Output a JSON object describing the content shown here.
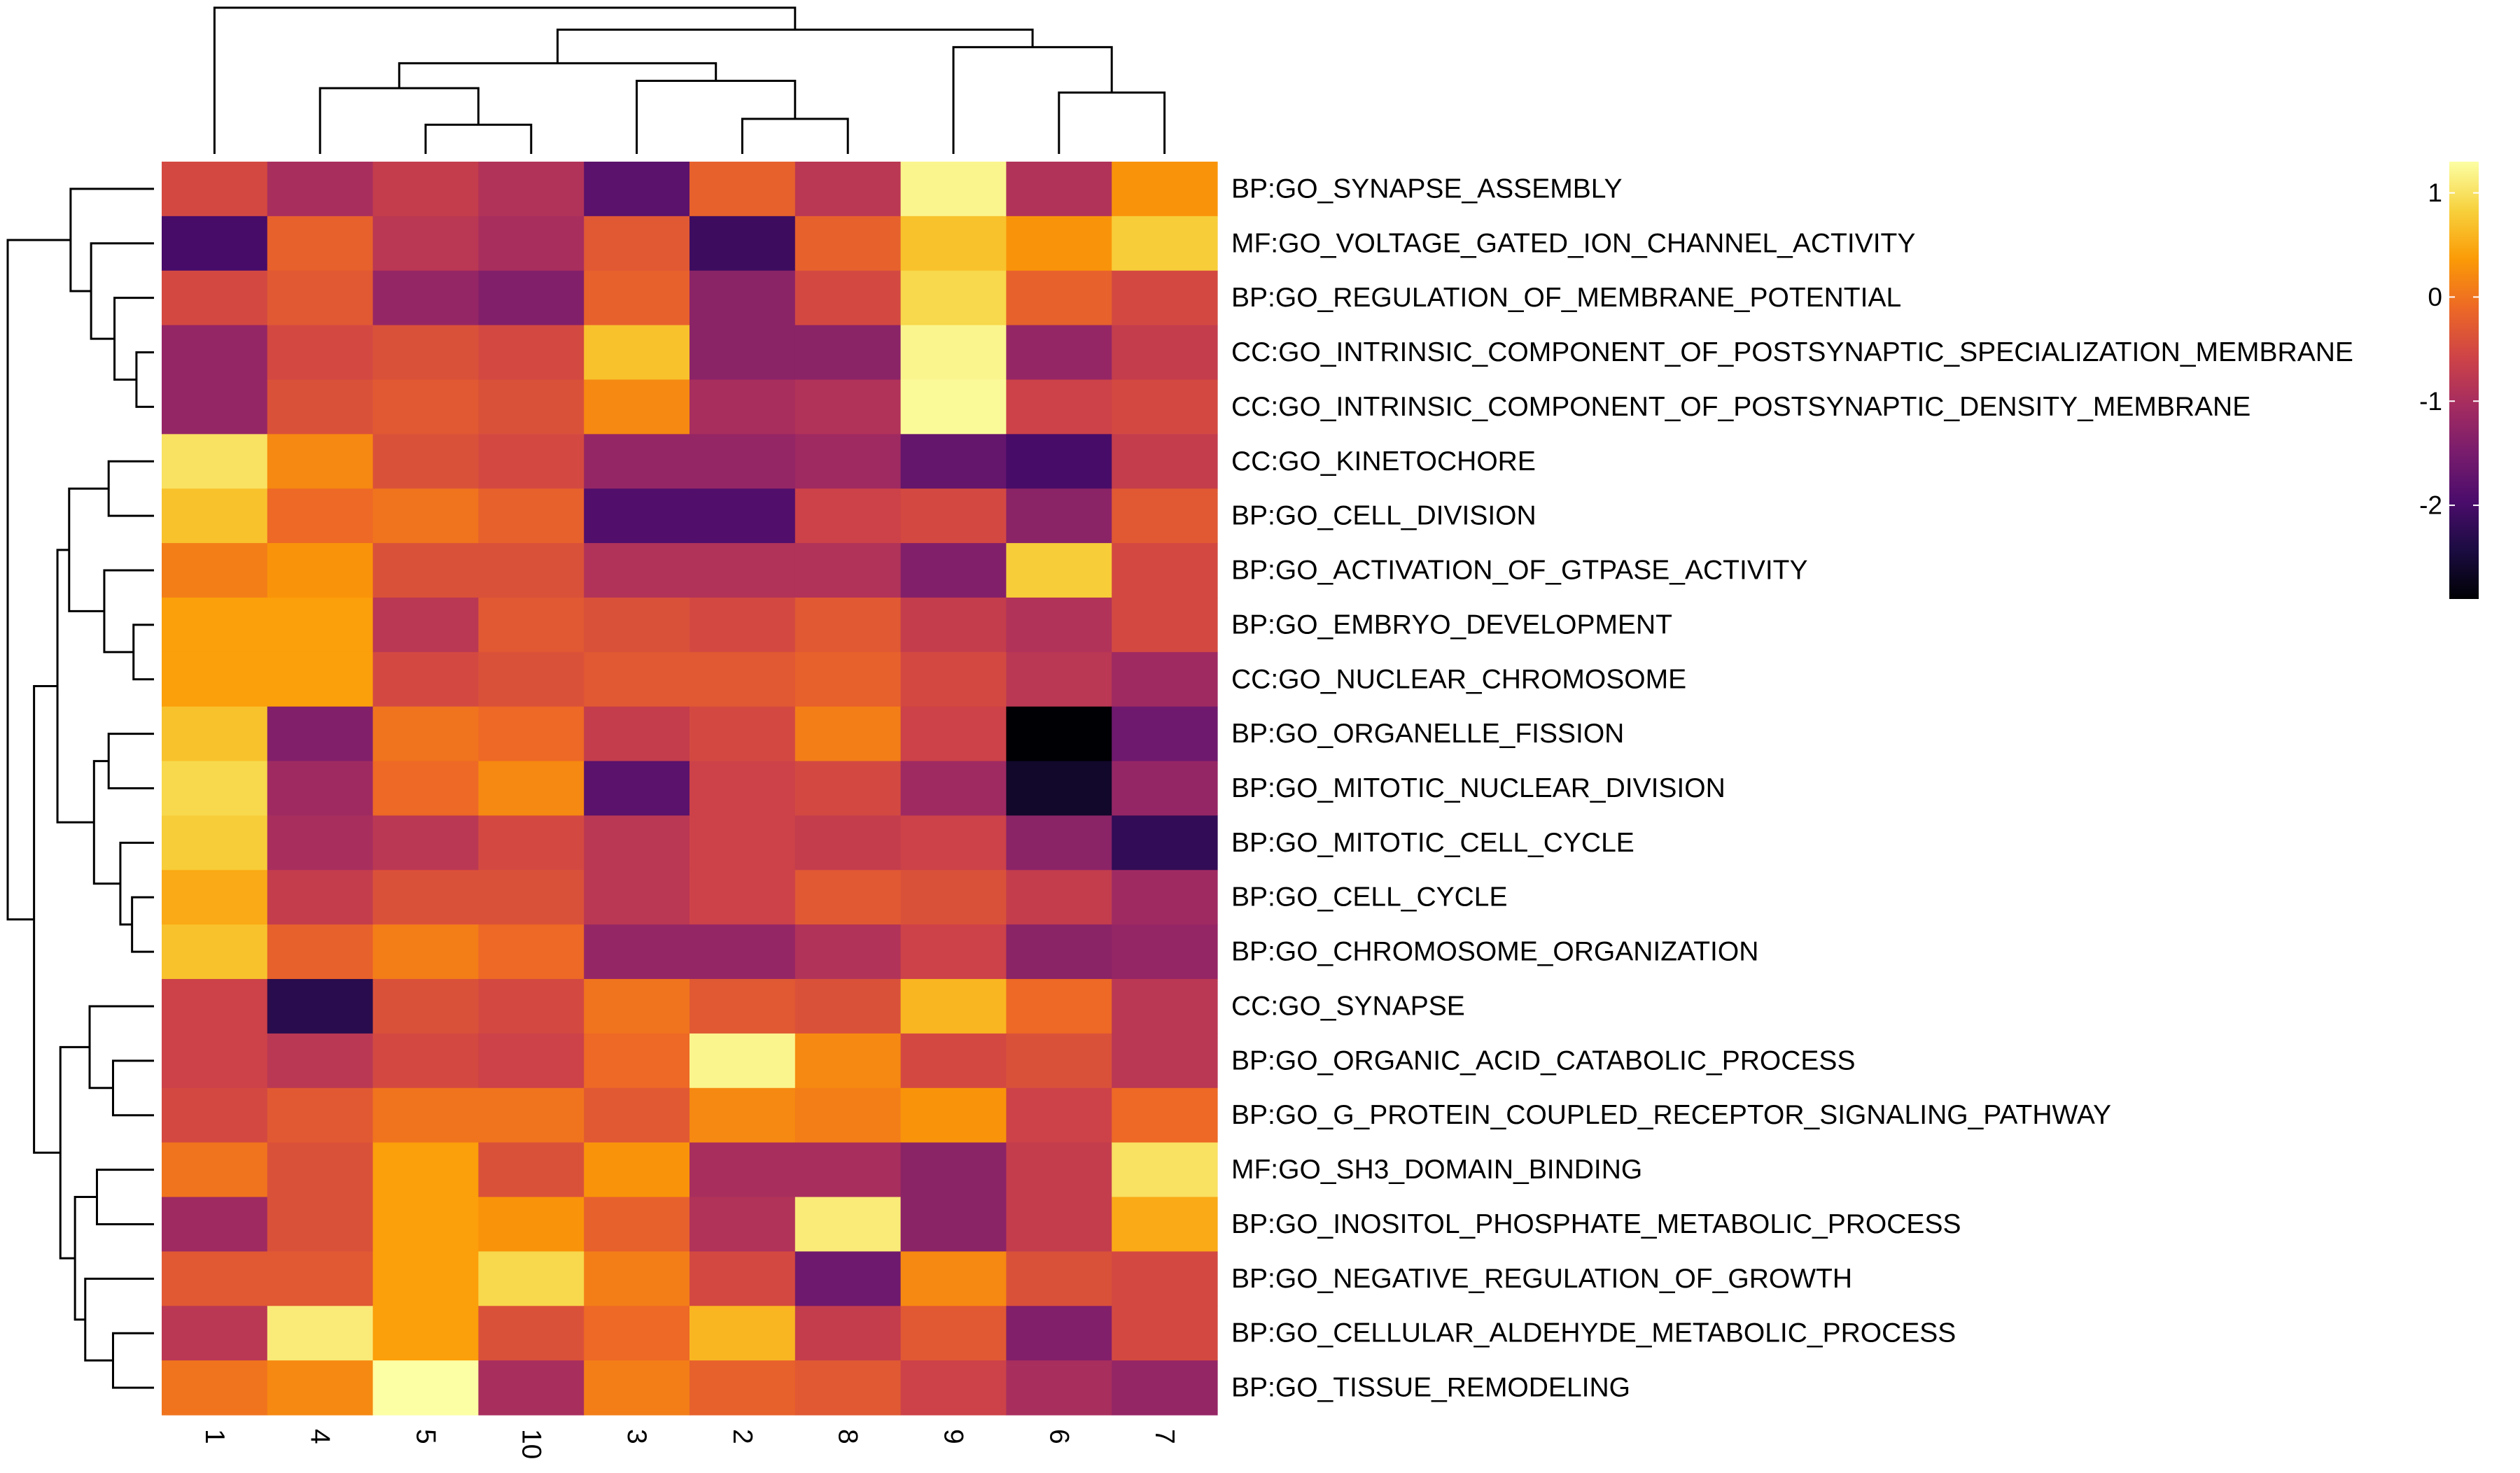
{
  "chart_data": {
    "type": "heatmap",
    "title": "",
    "xlabel": "",
    "ylabel": "",
    "columns": [
      "1",
      "4",
      "5",
      "10",
      "3",
      "2",
      "8",
      "9",
      "6",
      "7"
    ],
    "rows": [
      "BP:GO_SYNAPSE_ASSEMBLY",
      "MF:GO_VOLTAGE_GATED_ION_CHANNEL_ACTIVITY",
      "BP:GO_REGULATION_OF_MEMBRANE_POTENTIAL",
      "CC:GO_INTRINSIC_COMPONENT_OF_POSTSYNAPTIC_SPECIALIZATION_MEMBRANE",
      "CC:GO_INTRINSIC_COMPONENT_OF_POSTSYNAPTIC_DENSITY_MEMBRANE",
      "CC:GO_KINETOCHORE",
      "BP:GO_CELL_DIVISION",
      "BP:GO_ACTIVATION_OF_GTPASE_ACTIVITY",
      "BP:GO_EMBRYO_DEVELOPMENT",
      "CC:GO_NUCLEAR_CHROMOSOME",
      "BP:GO_ORGANELLE_FISSION",
      "BP:GO_MITOTIC_NUCLEAR_DIVISION",
      "BP:GO_MITOTIC_CELL_CYCLE",
      "BP:GO_CELL_CYCLE",
      "BP:GO_CHROMOSOME_ORGANIZATION",
      "CC:GO_SYNAPSE",
      "BP:GO_ORGANIC_ACID_CATABOLIC_PROCESS",
      "BP:GO_G_PROTEIN_COUPLED_RECEPTOR_SIGNALING_PATHWAY",
      "MF:GO_SH3_DOMAIN_BINDING",
      "BP:GO_INOSITOL_PHOSPHATE_METABOLIC_PROCESS",
      "BP:GO_NEGATIVE_REGULATION_OF_GROWTH",
      "BP:GO_CELLULAR_ALDEHYDE_METABOLIC_PROCESS",
      "BP:GO_TISSUE_REMODELING"
    ],
    "values": [
      [
        -0.5,
        -1.0,
        -0.7,
        -0.9,
        -1.8,
        -0.2,
        -0.8,
        1.2,
        -0.9,
        0.3
      ],
      [
        -2.0,
        -0.2,
        -0.8,
        -1.0,
        -0.3,
        -2.1,
        -0.2,
        0.7,
        0.3,
        0.8
      ],
      [
        -0.5,
        -0.3,
        -1.2,
        -1.4,
        -0.2,
        -1.3,
        -0.5,
        0.9,
        -0.2,
        -0.5
      ],
      [
        -1.2,
        -0.5,
        -0.4,
        -0.5,
        0.7,
        -1.3,
        -1.3,
        1.2,
        -1.2,
        -0.7
      ],
      [
        -1.2,
        -0.4,
        -0.3,
        -0.4,
        0.2,
        -1.0,
        -0.9,
        1.25,
        -0.6,
        -0.5
      ],
      [
        1.0,
        0.2,
        -0.4,
        -0.5,
        -1.2,
        -1.2,
        -1.1,
        -1.7,
        -2.0,
        -0.7
      ],
      [
        0.7,
        -0.1,
        0.0,
        -0.2,
        -1.9,
        -1.9,
        -0.6,
        -0.5,
        -1.3,
        -0.3
      ],
      [
        0.1,
        0.3,
        -0.4,
        -0.4,
        -0.9,
        -0.9,
        -0.9,
        -1.4,
        0.8,
        -0.5
      ],
      [
        0.4,
        0.4,
        -0.8,
        -0.3,
        -0.4,
        -0.5,
        -0.3,
        -0.7,
        -0.9,
        -0.5
      ],
      [
        0.4,
        0.4,
        -0.5,
        -0.4,
        -0.3,
        -0.3,
        -0.2,
        -0.5,
        -0.8,
        -1.1
      ],
      [
        0.7,
        -1.4,
        0.0,
        -0.1,
        -0.7,
        -0.5,
        0.1,
        -0.6,
        -2.9,
        -1.6
      ],
      [
        0.9,
        -1.1,
        -0.1,
        0.2,
        -1.8,
        -0.6,
        -0.5,
        -1.1,
        -2.6,
        -1.2
      ],
      [
        0.8,
        -1.0,
        -0.8,
        -0.5,
        -0.8,
        -0.6,
        -0.7,
        -0.6,
        -1.3,
        -2.2
      ],
      [
        0.5,
        -0.7,
        -0.4,
        -0.4,
        -0.8,
        -0.6,
        -0.3,
        -0.4,
        -0.7,
        -1.1
      ],
      [
        0.7,
        -0.2,
        0.1,
        -0.1,
        -1.2,
        -1.2,
        -0.9,
        -0.6,
        -1.3,
        -1.2
      ],
      [
        -0.6,
        -2.3,
        -0.4,
        -0.5,
        0.0,
        -0.3,
        -0.4,
        0.6,
        -0.1,
        -0.8
      ],
      [
        -0.6,
        -0.8,
        -0.5,
        -0.6,
        -0.1,
        1.2,
        0.2,
        -0.5,
        -0.4,
        -0.8
      ],
      [
        -0.5,
        -0.3,
        0.0,
        0.0,
        -0.3,
        0.2,
        0.1,
        0.3,
        -0.6,
        -0.1
      ],
      [
        0.0,
        -0.4,
        0.4,
        -0.4,
        0.3,
        -1.0,
        -1.0,
        -1.3,
        -0.7,
        1.0
      ],
      [
        -1.1,
        -0.4,
        0.4,
        0.3,
        -0.2,
        -0.9,
        1.1,
        -1.3,
        -0.7,
        0.5
      ],
      [
        -0.3,
        -0.3,
        0.4,
        0.9,
        0.1,
        -0.5,
        -1.6,
        0.2,
        -0.4,
        -0.5
      ],
      [
        -0.8,
        1.1,
        0.4,
        -0.4,
        -0.1,
        0.6,
        -0.7,
        -0.3,
        -1.4,
        -0.5
      ],
      [
        0.0,
        0.2,
        1.3,
        -1.0,
        0.1,
        -0.2,
        -0.3,
        -0.6,
        -1.0,
        -1.2
      ]
    ],
    "legend": {
      "position": "right",
      "range": [
        -2.9,
        1.3
      ],
      "ticks": [
        1,
        0,
        -1,
        -2
      ],
      "tick_labels": [
        "1",
        "0",
        "-1",
        "-2"
      ],
      "colormap": [
        "#000004",
        "#1b0c41",
        "#4a0c6b",
        "#781c6d",
        "#a52c60",
        "#cf4446",
        "#ed6925",
        "#fb9b06",
        "#f7d13d",
        "#fcffa4"
      ]
    },
    "row_dendrogram": true,
    "column_dendrogram": true,
    "grid": false
  }
}
